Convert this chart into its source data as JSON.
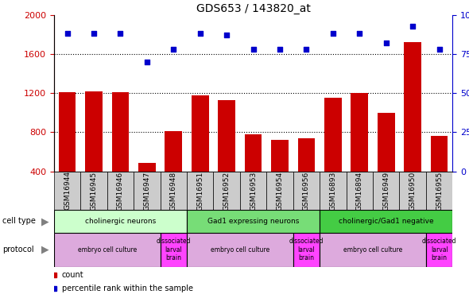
{
  "title": "GDS653 / 143820_at",
  "samples": [
    "GSM16944",
    "GSM16945",
    "GSM16946",
    "GSM16947",
    "GSM16948",
    "GSM16951",
    "GSM16952",
    "GSM16953",
    "GSM16954",
    "GSM16956",
    "GSM16893",
    "GSM16894",
    "GSM16949",
    "GSM16950",
    "GSM16955"
  ],
  "bar_values": [
    1210,
    1215,
    1210,
    490,
    810,
    1175,
    1130,
    780,
    720,
    740,
    1155,
    1200,
    1000,
    1720,
    760
  ],
  "scatter_values": [
    88,
    88,
    88,
    70,
    78,
    88,
    87,
    78,
    78,
    78,
    88,
    88,
    82,
    93,
    78
  ],
  "ylim_left": [
    400,
    2000
  ],
  "ylim_right": [
    0,
    100
  ],
  "yticks_left": [
    400,
    800,
    1200,
    1600,
    2000
  ],
  "yticks_right": [
    0,
    25,
    50,
    75,
    100
  ],
  "bar_color": "#cc0000",
  "scatter_color": "#0000cc",
  "cell_type_groups": [
    {
      "label": "cholinergic neurons",
      "start": 0,
      "end": 5,
      "color": "#ccffcc"
    },
    {
      "label": "Gad1 expressing neurons",
      "start": 5,
      "end": 10,
      "color": "#77dd77"
    },
    {
      "label": "cholinergic/Gad1 negative",
      "start": 10,
      "end": 15,
      "color": "#44cc44"
    }
  ],
  "protocol_groups": [
    {
      "label": "embryo cell culture",
      "start": 0,
      "end": 4,
      "color": "#ddaadd"
    },
    {
      "label": "dissociated\nlarval\nbrain",
      "start": 4,
      "end": 5,
      "color": "#ff44ff"
    },
    {
      "label": "embryo cell culture",
      "start": 5,
      "end": 9,
      "color": "#ddaadd"
    },
    {
      "label": "dissociated\nlarval\nbrain",
      "start": 9,
      "end": 10,
      "color": "#ff44ff"
    },
    {
      "label": "embryo cell culture",
      "start": 10,
      "end": 14,
      "color": "#ddaadd"
    },
    {
      "label": "dissociated\nlarval\nbrain",
      "start": 14,
      "end": 15,
      "color": "#ff44ff"
    }
  ],
  "xtick_bg_color": "#cccccc",
  "legend_count_color": "#cc0000",
  "legend_scatter_color": "#0000cc",
  "xlabel_fontsize": 6.5,
  "tick_fontsize": 8,
  "title_fontsize": 10
}
